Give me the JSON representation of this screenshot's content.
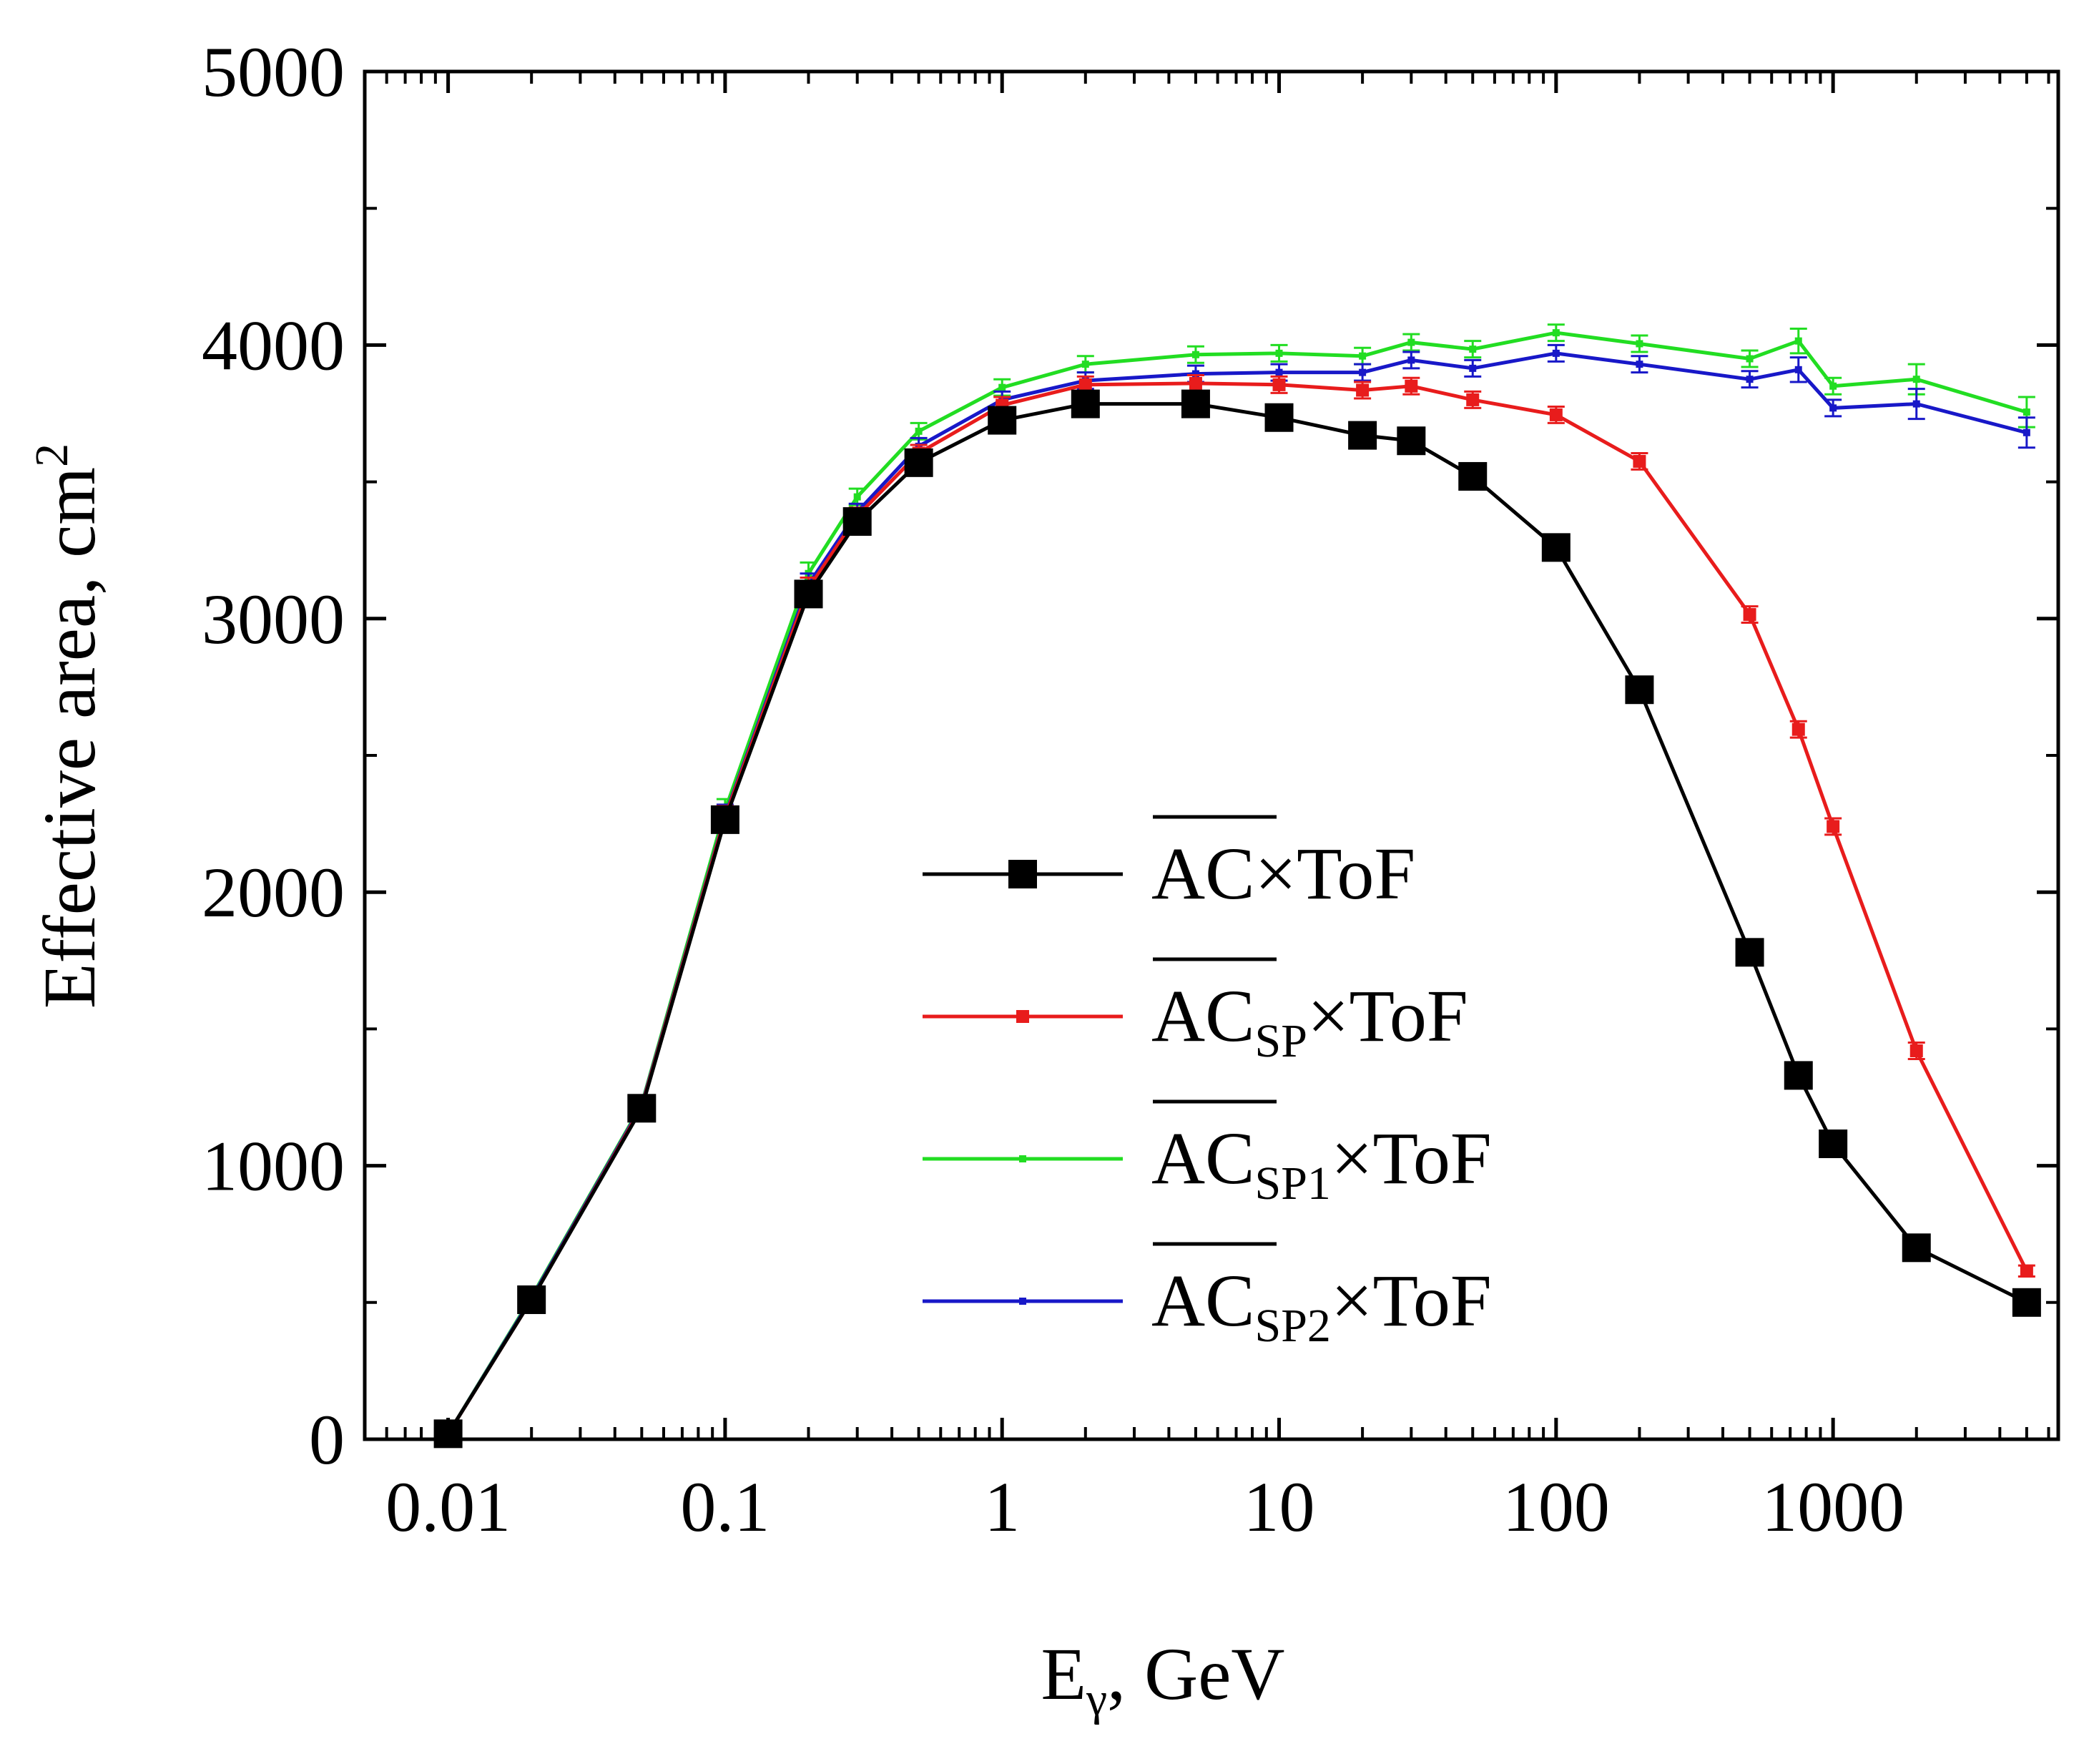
{
  "chart_data": {
    "type": "line",
    "title": "",
    "xlabel": {
      "main": "E",
      "sub": "γ",
      "rest": ", GeV"
    },
    "ylabel": {
      "main": "Effective area, cm",
      "sup": "2"
    },
    "xscale": "log",
    "xlim": [
      0.005,
      6500
    ],
    "ylim": [
      0,
      5000
    ],
    "x_ticks": [
      {
        "value": 0.01,
        "label": "0.01"
      },
      {
        "value": 0.1,
        "label": "0.1"
      },
      {
        "value": 1,
        "label": "1"
      },
      {
        "value": 10,
        "label": "10"
      },
      {
        "value": 100,
        "label": "100"
      },
      {
        "value": 1000,
        "label": "1000"
      }
    ],
    "y_ticks": [
      {
        "value": 0,
        "label": "0"
      },
      {
        "value": 1000,
        "label": "1000"
      },
      {
        "value": 2000,
        "label": "2000"
      },
      {
        "value": 3000,
        "label": "3000"
      },
      {
        "value": 4000,
        "label": "4000"
      },
      {
        "value": 5000,
        "label": "5000"
      }
    ],
    "y_minor_step": 500,
    "grid": false,
    "legend_position": "center-right",
    "x": [
      0.01,
      0.02,
      0.05,
      0.1,
      0.2,
      0.3,
      0.5,
      1,
      2,
      5,
      10,
      20,
      30,
      50,
      100,
      200,
      500,
      750,
      1000,
      2000,
      5000
    ],
    "series": [
      {
        "name": "AC×ToF",
        "legend": {
          "base": "AC",
          "sub": "",
          "rest": "×ToF"
        },
        "color": "#000000",
        "marker": "square-large",
        "values": [
          20,
          510,
          1210,
          2265,
          3090,
          3355,
          3570,
          3725,
          3785,
          3785,
          3735,
          3670,
          3650,
          3520,
          3260,
          2740,
          1780,
          1330,
          1080,
          700,
          500
        ],
        "errors": [
          10,
          20,
          30,
          40,
          40,
          30,
          30,
          30,
          30,
          30,
          30,
          30,
          30,
          30,
          30,
          30,
          30,
          30,
          30,
          30,
          20
        ]
      },
      {
        "name": "ACSP×ToF",
        "legend": {
          "base": "AC",
          "sub": "SP",
          "rest": "×ToF"
        },
        "color": "#e81c1c",
        "marker": "square-small",
        "values": [
          20,
          510,
          1215,
          2275,
          3110,
          3375,
          3605,
          3780,
          3855,
          3860,
          3855,
          3835,
          3850,
          3800,
          3745,
          3575,
          3015,
          2595,
          2240,
          1420,
          615
        ],
        "errors": [
          10,
          20,
          30,
          40,
          40,
          30,
          30,
          30,
          30,
          30,
          30,
          30,
          30,
          30,
          30,
          30,
          30,
          30,
          30,
          30,
          20
        ]
      },
      {
        "name": "ACSP1×ToF",
        "legend": {
          "base": "AC",
          "sub": "SP1",
          "rest": "×ToF"
        },
        "color": "#22dd22",
        "marker": "square-tiny",
        "values": [
          20,
          520,
          1225,
          2300,
          3165,
          3445,
          3685,
          3845,
          3930,
          3965,
          3970,
          3960,
          4010,
          3985,
          4045,
          4005,
          3950,
          4015,
          3850,
          3875,
          3755
        ],
        "errors": [
          10,
          20,
          30,
          40,
          40,
          30,
          30,
          30,
          30,
          30,
          30,
          30,
          30,
          30,
          30,
          30,
          30,
          45,
          30,
          55,
          55
        ]
      },
      {
        "name": "ACSP2×ToF",
        "legend": {
          "base": "AC",
          "sub": "SP2",
          "rest": "×ToF"
        },
        "color": "#1818c8",
        "marker": "square-tiny",
        "values": [
          20,
          515,
          1220,
          2280,
          3125,
          3390,
          3630,
          3800,
          3870,
          3895,
          3900,
          3900,
          3945,
          3915,
          3970,
          3930,
          3875,
          3910,
          3770,
          3785,
          3680
        ],
        "errors": [
          10,
          20,
          30,
          40,
          40,
          30,
          30,
          30,
          30,
          30,
          30,
          30,
          30,
          30,
          30,
          30,
          30,
          45,
          30,
          55,
          55
        ]
      }
    ]
  }
}
